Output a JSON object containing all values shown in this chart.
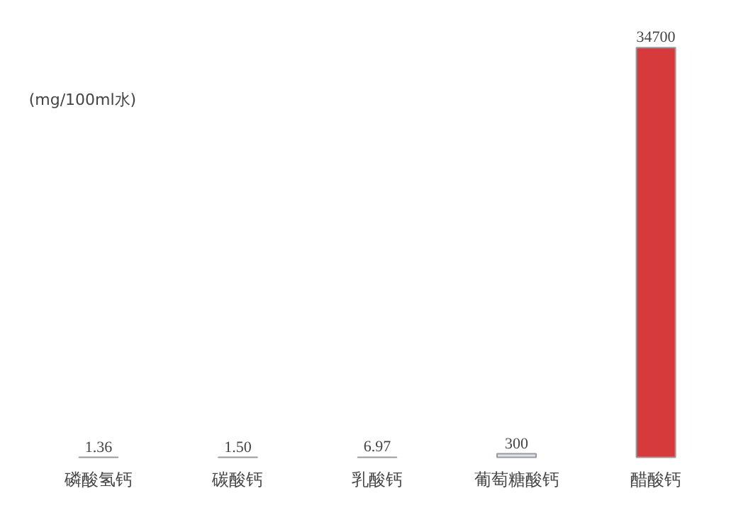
{
  "chart_data": {
    "type": "bar",
    "categories": [
      "磷酸氢钙",
      "碳酸钙",
      "乳酸钙",
      "葡萄糖酸钙",
      "醋酸钙"
    ],
    "values": [
      1.36,
      1.5,
      6.97,
      300,
      34700
    ],
    "colors": [
      "#f9b77a",
      "#c2b98a",
      "#ffffff",
      "#dce6f2",
      "#d63a3a"
    ],
    "data_labels": true,
    "value_labels": [
      "1.36",
      "1.50",
      "6.97",
      "300",
      "34700"
    ],
    "annotations": [
      "(mg/100ml水)"
    ],
    "grid": false
  }
}
